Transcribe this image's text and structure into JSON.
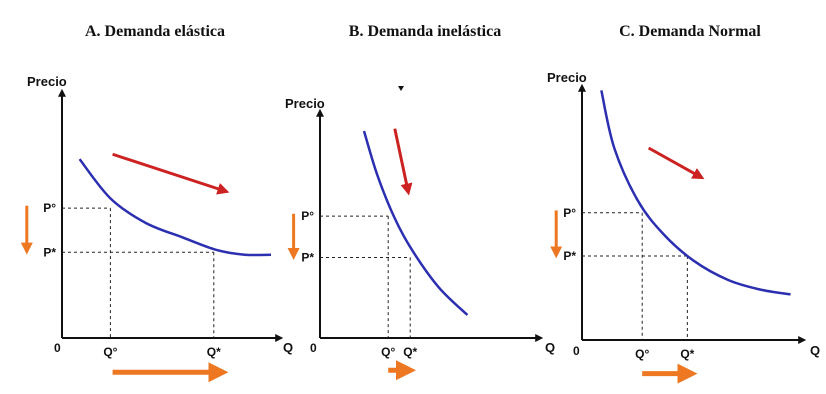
{
  "colors": {
    "curve": "#2b2fb0",
    "red_arrow": "#cc2222",
    "orange_arrow": "#ee7722",
    "axis": "#111111",
    "guide": "#222222"
  },
  "chart_data": [
    {
      "type": "line",
      "title": "A.  Demanda elástica",
      "ylabel": "Precio",
      "xlabel": "Q",
      "origin_label": "0",
      "y_tick_labels": [
        "P°",
        "P*"
      ],
      "x_tick_labels": [
        "Q°",
        "Q*"
      ],
      "xlim": [
        0,
        10
      ],
      "ylim": [
        0,
        10
      ],
      "series": [
        {
          "x": [
            0.8,
            2.2,
            3.8,
            5.5,
            7.0,
            8.3,
            9.5
          ],
          "y": [
            7.3,
            5.7,
            4.7,
            4.1,
            3.6,
            3.4,
            3.4
          ]
        }
      ],
      "guide_points": [
        {
          "x": 2.2,
          "y": 5.3
        },
        {
          "x": 6.9,
          "y": 3.5
        }
      ],
      "trend_arrow": {
        "from": [
          2.3,
          7.5
        ],
        "to": [
          7.4,
          6.0
        ]
      },
      "price_arrow": {
        "from": [
          -1.6,
          5.4
        ],
        "to": [
          -1.6,
          3.6
        ]
      },
      "quantity_arrow": {
        "from": [
          2.3,
          -1.4
        ],
        "to": [
          7.2,
          -1.4
        ]
      }
    },
    {
      "type": "line",
      "title": "B.  Demanda inelástica",
      "ylabel": "Precio",
      "xlabel": "Q",
      "origin_label": "0",
      "y_tick_labels": [
        "P°",
        "P*"
      ],
      "x_tick_labels": [
        "Q°",
        "Q*"
      ],
      "xlim": [
        0,
        10
      ],
      "ylim": [
        0,
        10
      ],
      "series": [
        {
          "x": [
            2.0,
            2.6,
            3.4,
            4.2,
            5.4,
            6.7
          ],
          "y": [
            9.0,
            7.1,
            5.2,
            3.8,
            2.2,
            1.0
          ]
        }
      ],
      "guide_points": [
        {
          "x": 3.1,
          "y": 5.3
        },
        {
          "x": 4.1,
          "y": 3.5
        }
      ],
      "trend_arrow": {
        "from": [
          3.4,
          9.1
        ],
        "to": [
          4.0,
          6.4
        ]
      },
      "price_arrow": {
        "from": [
          -1.2,
          5.4
        ],
        "to": [
          -1.2,
          3.6
        ]
      },
      "quantity_arrow": {
        "from": [
          3.1,
          -1.4
        ],
        "to": [
          4.0,
          -1.4
        ]
      }
    },
    {
      "type": "line",
      "title": "C.  Demanda Normal",
      "ylabel": "Precio",
      "xlabel": "Q",
      "origin_label": "0",
      "y_tick_labels": [
        "P°",
        "P*"
      ],
      "x_tick_labels": [
        "Q°",
        "Q*"
      ],
      "xlim": [
        0,
        10
      ],
      "ylim": [
        0,
        10
      ],
      "series": [
        {
          "x": [
            0.9,
            1.5,
            2.6,
            3.8,
            5.2,
            6.8,
            8.3,
            9.7
          ],
          "y": [
            10.4,
            8.0,
            5.8,
            4.4,
            3.3,
            2.5,
            2.1,
            1.9
          ]
        }
      ],
      "guide_points": [
        {
          "x": 2.8,
          "y": 5.3
        },
        {
          "x": 4.9,
          "y": 3.5
        }
      ],
      "trend_arrow": {
        "from": [
          3.1,
          8.0
        ],
        "to": [
          5.5,
          6.8
        ]
      },
      "price_arrow": {
        "from": [
          -1.2,
          5.4
        ],
        "to": [
          -1.2,
          3.6
        ]
      },
      "quantity_arrow": {
        "from": [
          2.8,
          -1.4
        ],
        "to": [
          5.0,
          -1.4
        ]
      }
    }
  ]
}
